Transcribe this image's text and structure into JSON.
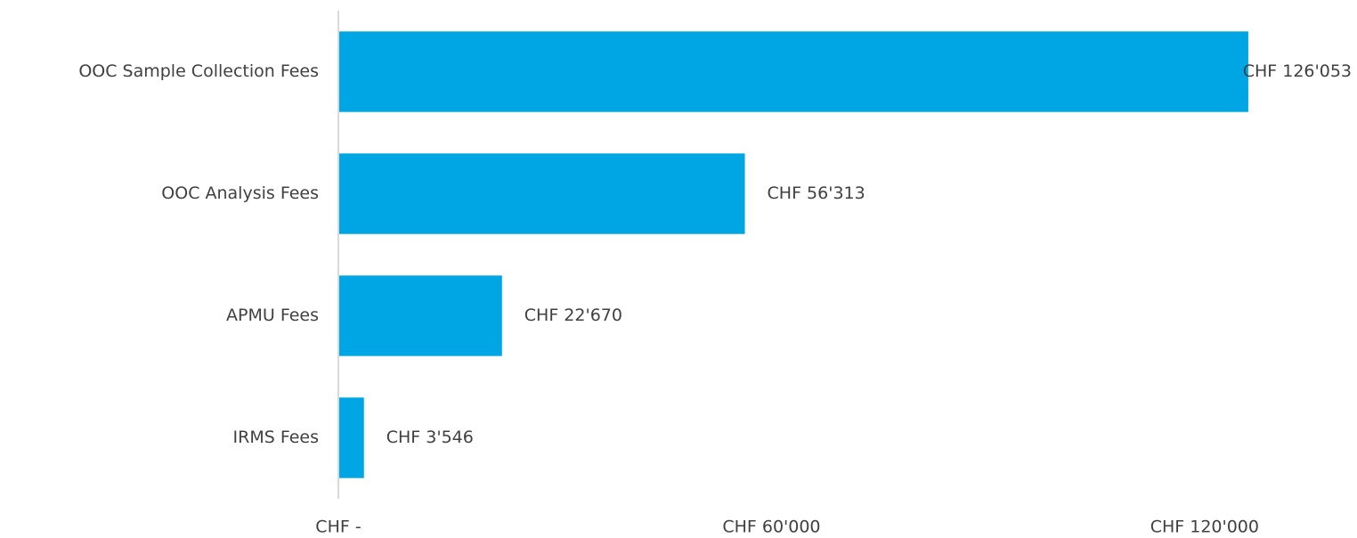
{
  "chart_data": {
    "type": "hbar",
    "categories": [
      "OOC Sample Collection Fees",
      "OOC Analysis Fees",
      "APMU Fees",
      "IRMS Fees"
    ],
    "values": [
      126053,
      56313,
      22670,
      3546
    ],
    "value_labels": [
      "CHF 126'053",
      "CHF 56'313",
      "CHF 22'670",
      "CHF 3'546"
    ],
    "color": "#00a6e3",
    "xlim": [
      0,
      140000
    ],
    "xticks": [
      {
        "value": 0,
        "label": "CHF -"
      },
      {
        "value": 60000,
        "label": "CHF 60'000"
      },
      {
        "value": 120000,
        "label": "CHF 120'000"
      }
    ],
    "grid": false
  }
}
